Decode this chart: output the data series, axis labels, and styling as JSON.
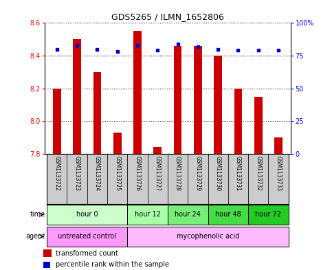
{
  "title": "GDS5265 / ILMN_1652806",
  "samples": [
    "GSM1133722",
    "GSM1133723",
    "GSM1133724",
    "GSM1133725",
    "GSM1133726",
    "GSM1133727",
    "GSM1133728",
    "GSM1133729",
    "GSM1133730",
    "GSM1133731",
    "GSM1133732",
    "GSM1133733"
  ],
  "transformed_counts": [
    8.2,
    8.5,
    8.3,
    7.93,
    8.55,
    7.84,
    8.46,
    8.46,
    8.4,
    8.2,
    8.15,
    7.9
  ],
  "percentile_ranks": [
    80,
    83,
    80,
    78,
    83,
    79,
    84,
    82,
    80,
    79,
    79,
    79
  ],
  "ylim_left": [
    7.8,
    8.6
  ],
  "ylim_right": [
    0,
    100
  ],
  "yticks_left": [
    7.8,
    8.0,
    8.2,
    8.4,
    8.6
  ],
  "yticks_right": [
    0,
    25,
    50,
    75,
    100
  ],
  "ytick_labels_right": [
    "0",
    "25",
    "50",
    "75",
    "100%"
  ],
  "bar_color": "#CC0000",
  "dot_color": "#0000CC",
  "bar_bottom": 7.8,
  "time_groups": [
    {
      "label": "hour 0",
      "start": 0,
      "end": 3,
      "color": "#ccffcc"
    },
    {
      "label": "hour 12",
      "start": 4,
      "end": 5,
      "color": "#aaffaa"
    },
    {
      "label": "hour 24",
      "start": 6,
      "end": 7,
      "color": "#77ee77"
    },
    {
      "label": "hour 48",
      "start": 8,
      "end": 9,
      "color": "#44dd44"
    },
    {
      "label": "hour 72",
      "start": 10,
      "end": 11,
      "color": "#22cc22"
    }
  ],
  "agent_groups": [
    {
      "label": "untreated control",
      "start": 0,
      "end": 3,
      "color": "#ff99ff"
    },
    {
      "label": "mycophenolic acid",
      "start": 4,
      "end": 11,
      "color": "#ffbbff"
    }
  ],
  "legend_bar_label": "transformed count",
  "legend_dot_label": "percentile rank within the sample",
  "xlabel_time": "time",
  "xlabel_agent": "agent",
  "sample_bg_color": "#cccccc",
  "bar_width": 0.4
}
